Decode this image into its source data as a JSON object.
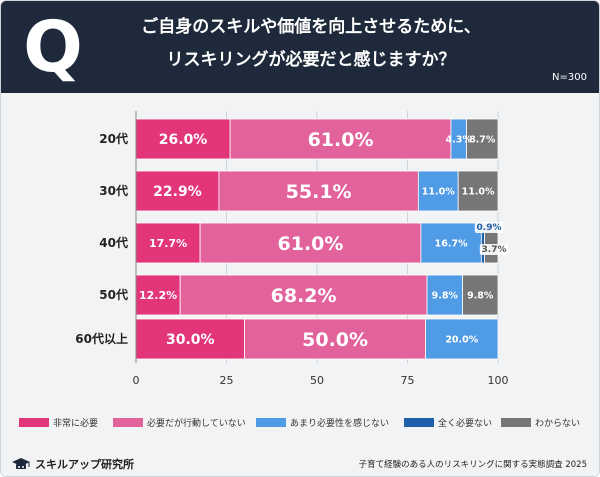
{
  "header": {
    "q_letter": "Q",
    "question_line1": "ご自身のスキルや価値を向上させるために、",
    "question_line2": "リスキリングが必要だと感じますか？",
    "sample_size": "N=300"
  },
  "chart_data": {
    "type": "bar",
    "orientation": "horizontal",
    "stacked": true,
    "categories": [
      "20代",
      "30代",
      "40代",
      "50代",
      "60代以上"
    ],
    "series": [
      {
        "name": "非常に必要",
        "color": "#e2357a",
        "values": [
          26.0,
          22.9,
          17.7,
          12.2,
          30.0
        ],
        "labels": [
          "26.0%",
          "22.9%",
          "17.7%",
          "12.2%",
          "30.0%"
        ]
      },
      {
        "name": "必要だが行動していない",
        "color": "#e2639c",
        "values": [
          61.0,
          55.1,
          61.0,
          68.2,
          50.0
        ],
        "labels": [
          "61.0%",
          "55.1%",
          "61.0%",
          "68.2%",
          "50.0%"
        ]
      },
      {
        "name": "あまり必要性を感じない",
        "color": "#4f9be6",
        "values": [
          4.3,
          11.0,
          16.7,
          9.8,
          20.0
        ],
        "labels": [
          "4.3%",
          "11.0%",
          "16.7%",
          "9.8%",
          "20.0%"
        ]
      },
      {
        "name": "全く必要ない",
        "color": "#1f5fa8",
        "values": [
          0,
          0,
          0.9,
          0,
          0
        ],
        "labels": [
          "",
          "",
          "0.9%",
          "",
          ""
        ]
      },
      {
        "name": "わからない",
        "color": "#767676",
        "values": [
          8.7,
          11.0,
          3.7,
          9.8,
          0
        ],
        "labels": [
          "8.7%",
          "11.0%",
          "3.7%",
          "9.8%",
          ""
        ]
      }
    ],
    "xlim": [
      0,
      100
    ],
    "xticks": [
      "0",
      "25",
      "50",
      "75",
      "100"
    ],
    "grid": true,
    "legend_position": "bottom"
  },
  "footer": {
    "logo_text": "スキルアップ研究所",
    "source": "子育て経験のある人のリスキリングに関する実態調査 2025"
  }
}
